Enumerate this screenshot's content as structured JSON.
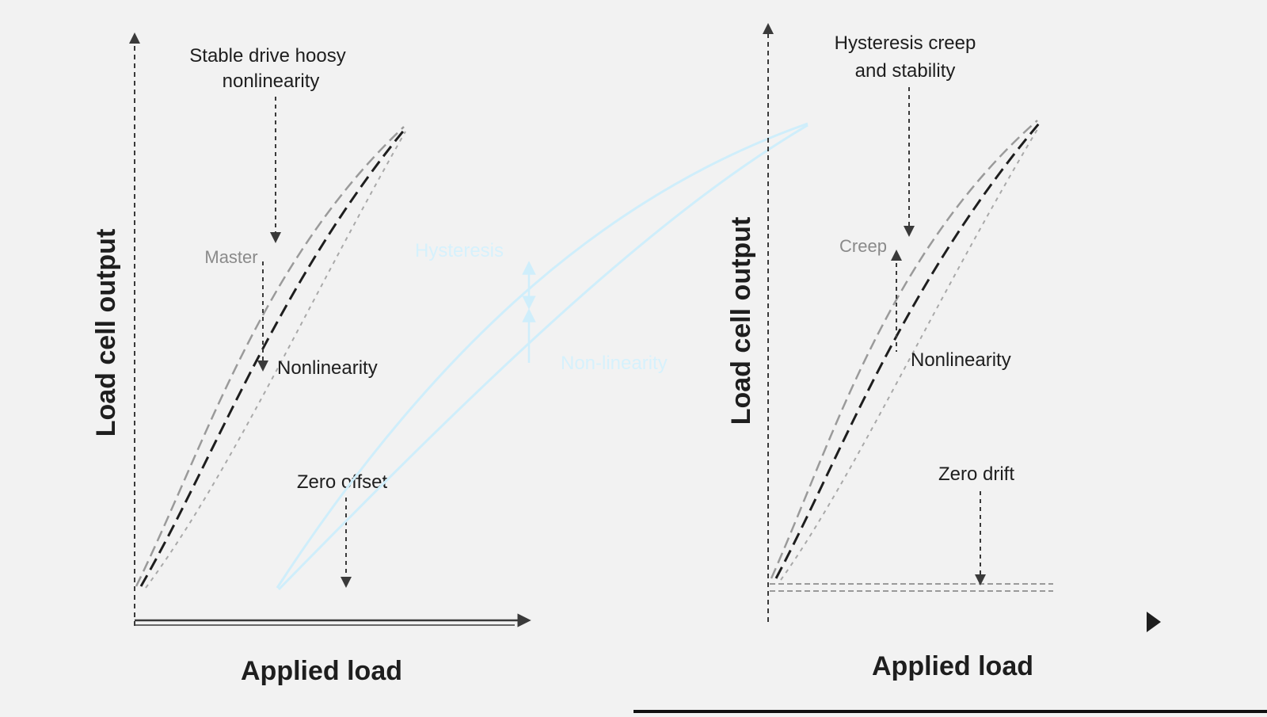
{
  "colors": {
    "background": "#f2f2f2",
    "axis": "#3a3a3a",
    "ink": "#1e1e1e",
    "gray_curve": "#9a9a9a",
    "light_curve": "#a9a9a9",
    "hysteresis": "#cfeefb",
    "hysteresis_text": "#d6f1fc",
    "bottom_bar": "#111111"
  },
  "left_panel": {
    "top_callout": [
      "Stable drive hoosy",
      "nonlinearity"
    ],
    "mid_label": "Master",
    "lower_label": "Nonlinearity",
    "zero_label": "Zero offset",
    "y_axis_label": "Load cell output",
    "x_axis_label": "Applied load"
  },
  "center": {
    "hysteresis_label": "Hysteresis",
    "nonlinearity_label": "Non-linearity"
  },
  "right_panel": {
    "top_callout": [
      "Hysteresis creep",
      "and stability"
    ],
    "mid_label": "Creep",
    "lower_label": "Nonlinearity",
    "zero_label": "Zero drift",
    "y_axis_label": "Load cell output",
    "x_axis_label": "Applied load"
  }
}
